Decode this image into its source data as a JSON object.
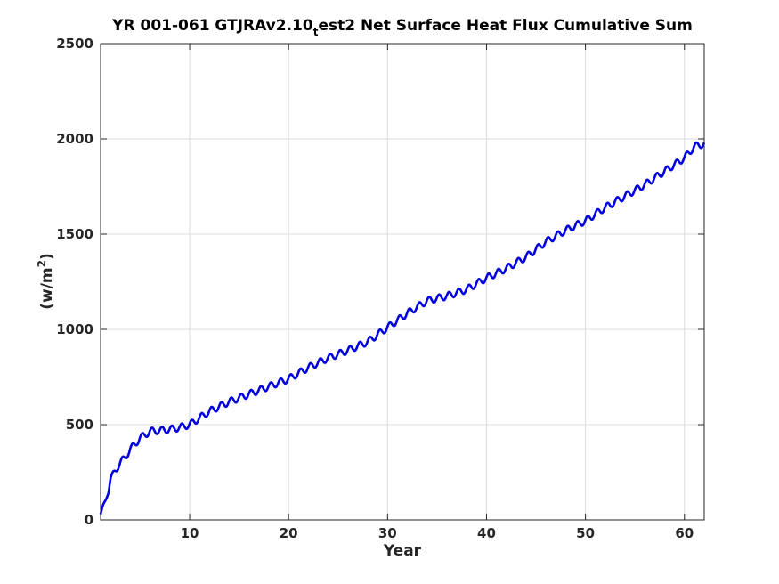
{
  "chart_data": {
    "type": "line",
    "title_main": "YR 001-061 GTJRAv2.10",
    "title_sub": "t",
    "title_rest": "est2 Net Surface Heat Flux  Cumulative Sum",
    "xlabel": "Year",
    "ylabel_main": "(w/m",
    "ylabel_sup": "2",
    "ylabel_end": ")",
    "xlim": [
      1,
      62
    ],
    "ylim": [
      0,
      2500
    ],
    "xticks": [
      10,
      20,
      30,
      40,
      50,
      60
    ],
    "yticks": [
      0,
      500,
      1000,
      1500,
      2000,
      2500
    ],
    "grid": true,
    "series": [
      {
        "color": "#0000e0",
        "seasonal_amplitude": 18,
        "x": [
          1,
          1.2,
          1.5,
          1.8,
          2,
          2.5,
          3,
          3.5,
          4,
          5,
          6,
          7,
          8,
          9,
          10,
          12,
          14,
          16,
          18,
          20,
          22,
          24,
          26,
          28,
          30,
          32,
          34,
          36,
          38,
          40,
          42,
          44,
          46,
          48,
          50,
          52,
          54,
          56,
          58,
          60,
          61,
          62
        ],
        "y": [
          30,
          70,
          105,
          150,
          215,
          262,
          300,
          330,
          370,
          430,
          465,
          470,
          475,
          485,
          500,
          570,
          620,
          660,
          700,
          740,
          800,
          850,
          890,
          935,
          1010,
          1085,
          1150,
          1175,
          1210,
          1270,
          1320,
          1380,
          1460,
          1520,
          1570,
          1640,
          1700,
          1760,
          1830,
          1900,
          1960,
          1975
        ]
      }
    ]
  }
}
